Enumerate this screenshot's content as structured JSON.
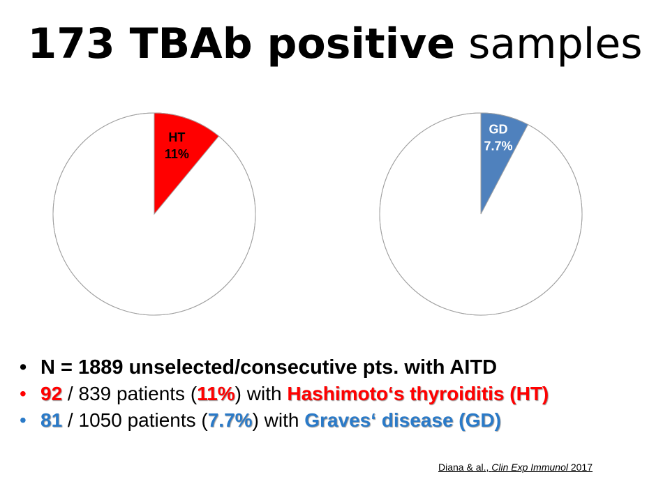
{
  "title": {
    "bold": "173 TBAb positive",
    "light": "samples"
  },
  "chart_data": [
    {
      "type": "pie",
      "slices": [
        {
          "label": "HT",
          "value": 11,
          "value_label": "11%",
          "color": "#ff0000"
        },
        {
          "label": "",
          "value": 89,
          "value_label": "",
          "color": "#ffffff"
        }
      ]
    },
    {
      "type": "pie",
      "slices": [
        {
          "label": "GD",
          "value": 7.7,
          "value_label": "7.7%",
          "color": "#4f81bd"
        },
        {
          "label": "",
          "value": 92.3,
          "value_label": "",
          "color": "#ffffff"
        }
      ]
    }
  ],
  "bullets": {
    "dot": "•",
    "line1": "N = 1889 unselected/consecutive pts. with AITD",
    "line2": {
      "count": "92",
      "mid1": " / 839 patients (",
      "pct": "11%",
      "mid2": ") with ",
      "disease": "Hashimoto‘s thyroiditis (HT)"
    },
    "line3": {
      "count": "81",
      "mid1": " / 1050 patients (",
      "pct": "7.7%",
      "mid2": ") with ",
      "disease": "Graves‘ disease (GD)"
    }
  },
  "citation": {
    "authors": "Diana & al., ",
    "journal": "Clin Exp Immunol",
    "year": " 2017"
  },
  "colors": {
    "red": "#ff0000",
    "blue": "#2a7ac8",
    "gd_slice": "#4f81bd"
  }
}
